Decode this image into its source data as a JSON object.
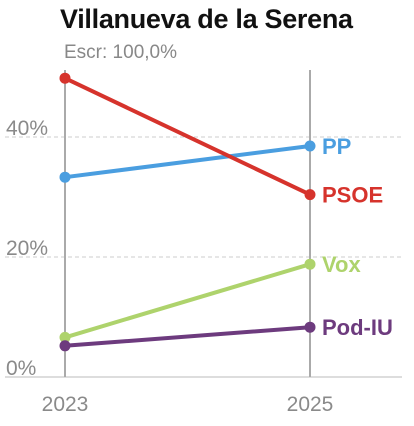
{
  "title": "Villanueva de la Serena",
  "subtitle": "Escr: 100,0%",
  "chart_data": {
    "type": "line",
    "x": [
      "2023",
      "2025"
    ],
    "y_ticks": [
      {
        "value": 0,
        "label": "0%"
      },
      {
        "value": 20,
        "label": "20%"
      },
      {
        "value": 40,
        "label": "40%"
      }
    ],
    "ylim": [
      0,
      51
    ],
    "grid": true,
    "series": [
      {
        "name": "PP",
        "values": [
          33.3,
          38.5
        ],
        "color": "#4a9ee0"
      },
      {
        "name": "PSOE",
        "values": [
          49.8,
          30.4
        ],
        "color": "#d6332c"
      },
      {
        "name": "Vox",
        "values": [
          6.6,
          18.8
        ],
        "color": "#aed36c"
      },
      {
        "name": "Pod-IU",
        "values": [
          5.2,
          8.3
        ],
        "color": "#6d3b7e"
      }
    ]
  }
}
